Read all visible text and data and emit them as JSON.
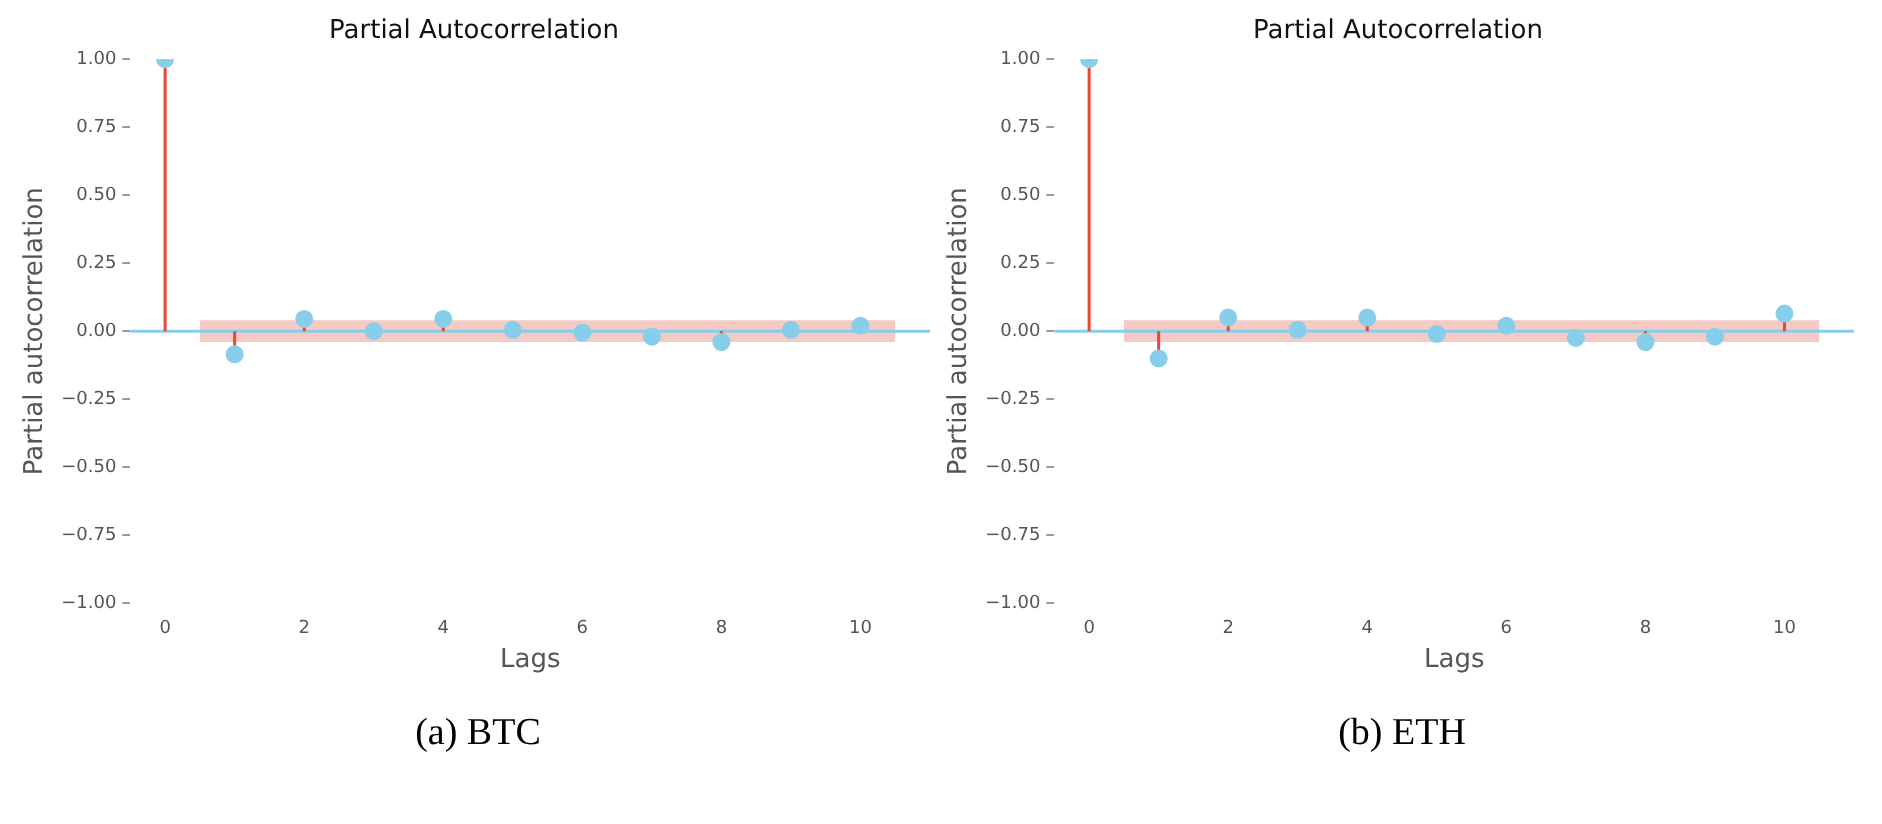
{
  "chart_data": [
    {
      "type": "lollipop",
      "title": "Partial Autocorrelation",
      "xlabel": "Lags",
      "ylabel": "Partial autocorrelation",
      "x": [
        0,
        1,
        2,
        3,
        4,
        5,
        6,
        7,
        8,
        9,
        10
      ],
      "series": [
        {
          "color": "#87ceeb",
          "values": [
            1.0,
            -0.085,
            0.045,
            0.0,
            0.045,
            0.005,
            -0.005,
            -0.02,
            -0.04,
            0.005,
            0.02
          ]
        }
      ],
      "xlim": [
        -0.5,
        11
      ],
      "xticks": [
        0,
        2,
        4,
        6,
        8,
        10
      ],
      "ylim": [
        -1,
        1
      ],
      "yticks": [
        {
          "value": -1,
          "label": "−1.00"
        },
        {
          "value": -0.75,
          "label": "−0.75"
        },
        {
          "value": -0.5,
          "label": "−0.50"
        },
        {
          "value": -0.25,
          "label": "−0.25"
        },
        {
          "value": 0,
          "label": "0.00"
        },
        {
          "value": 0.25,
          "label": "0.25"
        },
        {
          "value": 0.5,
          "label": "0.50"
        },
        {
          "value": 0.75,
          "label": "0.75"
        },
        {
          "value": 1,
          "label": "1.00"
        }
      ],
      "bands": [
        {
          "axis": "y",
          "from": -0.04,
          "to": 0.04,
          "color": "#f5c9c4"
        }
      ],
      "ref_lines": [
        {
          "axis": "y",
          "value": 0,
          "color": "#87ceeb"
        }
      ],
      "marker": "circle",
      "grid": false,
      "legend": false,
      "annotations": [
        "(a) BTC"
      ]
    },
    {
      "type": "lollipop",
      "title": "Partial Autocorrelation",
      "xlabel": "Lags",
      "ylabel": "Partial autocorrelation",
      "x": [
        0,
        1,
        2,
        3,
        4,
        5,
        6,
        7,
        8,
        9,
        10
      ],
      "series": [
        {
          "color": "#87ceeb",
          "values": [
            1.0,
            -0.1,
            0.05,
            0.005,
            0.05,
            -0.01,
            0.02,
            -0.025,
            -0.04,
            -0.02,
            0.065
          ]
        }
      ],
      "xlim": [
        -0.5,
        11
      ],
      "xticks": [
        0,
        2,
        4,
        6,
        8,
        10
      ],
      "ylim": [
        -1,
        1
      ],
      "yticks": [
        {
          "value": -1,
          "label": "−1.00"
        },
        {
          "value": -0.75,
          "label": "−0.75"
        },
        {
          "value": -0.5,
          "label": "−0.50"
        },
        {
          "value": -0.25,
          "label": "−0.25"
        },
        {
          "value": 0,
          "label": "0.00"
        },
        {
          "value": 0.25,
          "label": "0.25"
        },
        {
          "value": 0.5,
          "label": "0.50"
        },
        {
          "value": 0.75,
          "label": "0.75"
        },
        {
          "value": 1,
          "label": "1.00"
        }
      ],
      "bands": [
        {
          "axis": "y",
          "from": -0.04,
          "to": 0.04,
          "color": "#f5c9c4"
        }
      ],
      "ref_lines": [
        {
          "axis": "y",
          "value": 0,
          "color": "#87ceeb"
        }
      ],
      "marker": "circle",
      "grid": false,
      "legend": false,
      "annotations": [
        "(b) ETH"
      ]
    }
  ]
}
